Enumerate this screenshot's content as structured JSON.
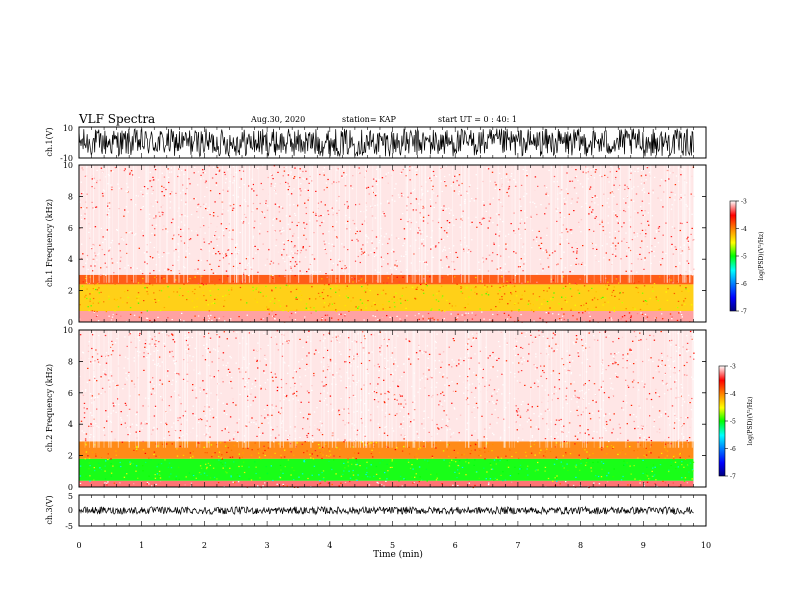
{
  "header": {
    "title": "VLF Spectra",
    "date": "Aug.30, 2020",
    "station": "station= KAP",
    "start": "start UT =  0 : 40: 1"
  },
  "chart_data": [
    {
      "type": "line",
      "panel": "ch1-waveform",
      "ylabel": "ch.1(V)",
      "ylim": [
        -10,
        10
      ],
      "yticks": [
        "10",
        "-10"
      ],
      "xlim": [
        0,
        10
      ],
      "note_shape": "dense noise between about -10 and 10 V across the whole record"
    },
    {
      "type": "heatmap",
      "panel": "ch1-spectrogram",
      "ylabel": "ch.1 Frequency (kHz)",
      "ylim": [
        0,
        10
      ],
      "yticks": [
        "0",
        "2",
        "4",
        "6",
        "8",
        "10"
      ],
      "xlim": [
        0,
        10
      ],
      "data_end_min": 9.8,
      "bands_khz": [
        {
          "from": 0,
          "to": 0.7,
          "level": -3.2
        },
        {
          "from": 0.7,
          "to": 2.4,
          "level": -4.3
        },
        {
          "from": 2.4,
          "to": 3.0,
          "level": -3.8
        },
        {
          "from": 3.0,
          "to": 10,
          "level": -3.1
        }
      ],
      "colorbar": {
        "label": "log(PSD)(V²/Hz)",
        "min": -7,
        "max": -3,
        "ticks": [
          "-3",
          "-4",
          "-5",
          "-6",
          "-7"
        ]
      }
    },
    {
      "type": "heatmap",
      "panel": "ch2-spectrogram",
      "ylabel": "ch.2 Frequency (kHz)",
      "ylim": [
        0,
        10
      ],
      "yticks": [
        "0",
        "2",
        "4",
        "6",
        "8",
        "10"
      ],
      "xlim": [
        0,
        10
      ],
      "data_end_min": 9.8,
      "bands_khz": [
        {
          "from": 0,
          "to": 0.4,
          "level": -3.3
        },
        {
          "from": 0.4,
          "to": 1.8,
          "level": -5.0
        },
        {
          "from": 1.8,
          "to": 2.9,
          "level": -4.0
        },
        {
          "from": 2.9,
          "to": 10,
          "level": -3.1
        }
      ],
      "colorbar": {
        "label": "log(PSD)(V²/Hz)",
        "min": -7,
        "max": -3,
        "ticks": [
          "-3",
          "-4",
          "-5",
          "-6",
          "-7"
        ]
      }
    },
    {
      "type": "line",
      "panel": "ch3-waveform",
      "ylabel": "ch.3(V)",
      "ylim": [
        -5,
        5
      ],
      "yticks": [
        "5",
        "0",
        "-5"
      ],
      "xlim": [
        0,
        10
      ],
      "note_shape": "narrow band around 0 V, roughly -0.5 to 0.5 V"
    }
  ],
  "xaxis": {
    "label": "Time (min)",
    "ticks": [
      "0",
      "1",
      "2",
      "3",
      "4",
      "5",
      "6",
      "7",
      "8",
      "9",
      "10"
    ]
  },
  "colors": {
    "colormap": [
      "#000080",
      "#0000ff",
      "#0080ff",
      "#00ffff",
      "#00ff00",
      "#ffff00",
      "#ff8000",
      "#ff0000",
      "#ffffff"
    ]
  }
}
